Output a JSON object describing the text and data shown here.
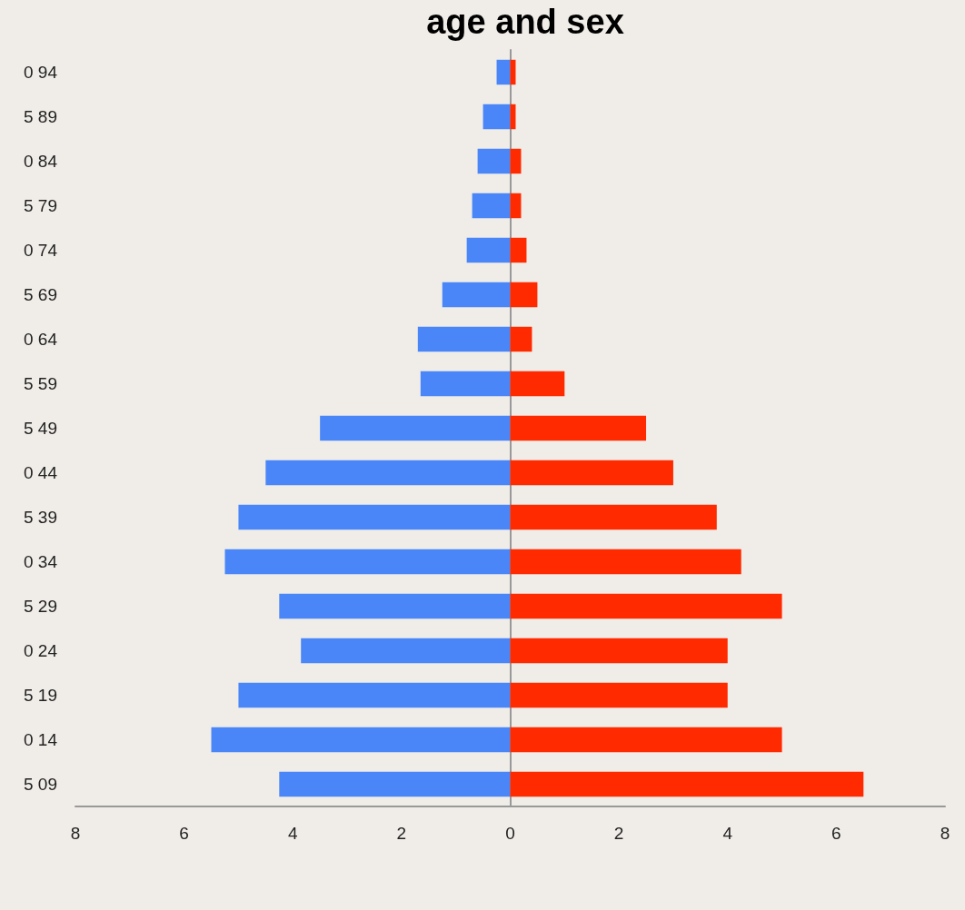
{
  "chart_data": {
    "type": "bar",
    "orientation": "horizontal",
    "title": "age and sex",
    "categories": [
      "0 94",
      "5 89",
      "0 84",
      "5 79",
      "0 74",
      "5 69",
      "0 64",
      "5 59",
      "5 49",
      "0 44",
      "5 39",
      "0 34",
      "5 29",
      "0 24",
      "5 19",
      "0 14",
      "5 09"
    ],
    "series": [
      {
        "color": "#4a86f7",
        "values": [
          -0.25,
          -0.5,
          -0.6,
          -0.7,
          -0.8,
          -1.25,
          -1.7,
          -1.65,
          -3.5,
          -4.5,
          -5.0,
          -5.25,
          -4.25,
          -3.85,
          -5.0,
          -5.5,
          -4.25
        ]
      },
      {
        "color": "#ff2a00",
        "values": [
          0.1,
          0.1,
          0.2,
          0.2,
          0.3,
          0.5,
          0.4,
          1.0,
          2.5,
          3.0,
          3.8,
          4.25,
          5.0,
          4.0,
          4.0,
          5.0,
          6.5
        ]
      }
    ],
    "xlim": [
      -8,
      8
    ],
    "xticks": [
      {
        "value": -8,
        "label": "8"
      },
      {
        "value": -6,
        "label": "6"
      },
      {
        "value": -4,
        "label": "4"
      },
      {
        "value": -2,
        "label": "2"
      },
      0,
      2,
      4,
      6,
      8
    ],
    "stacked": true
  }
}
